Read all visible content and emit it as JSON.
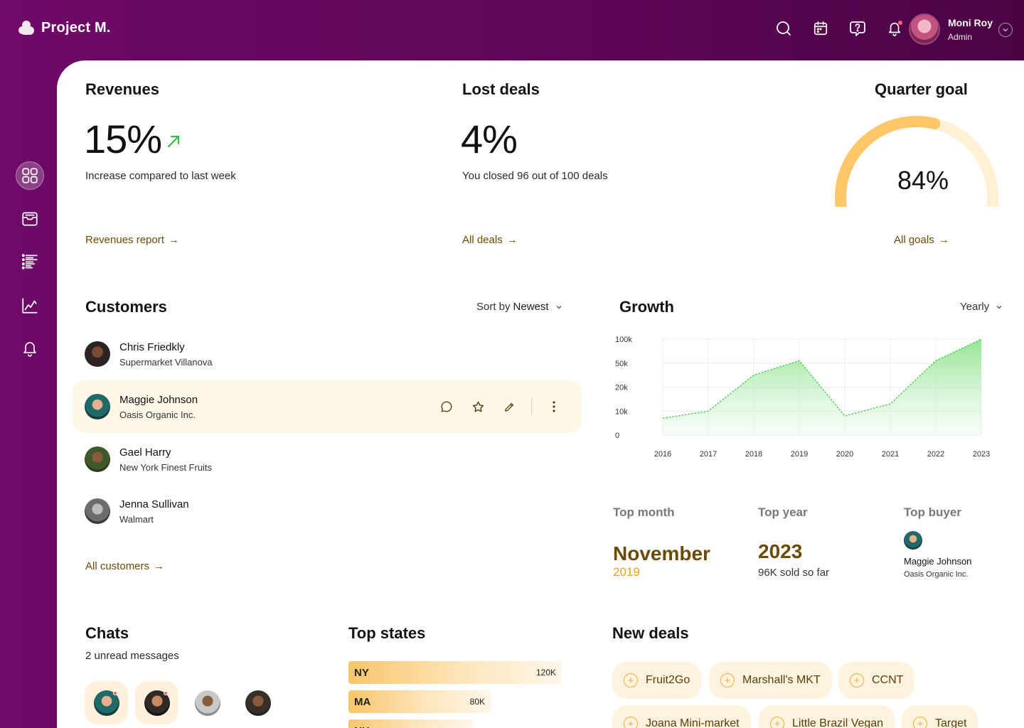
{
  "app": {
    "title": "Project M."
  },
  "user": {
    "name": "Moni Roy",
    "role": "Admin"
  },
  "topbar_icons": [
    "search-icon",
    "calendar-icon",
    "help-icon",
    "bell-icon"
  ],
  "sidebar": {
    "items": [
      "dashboard-icon",
      "inbox-icon",
      "list-icon",
      "chart-icon",
      "bell-icon"
    ]
  },
  "revenues": {
    "title": "Revenues",
    "value": "15%",
    "desc": "Increase compared to last week",
    "link": "Revenues report"
  },
  "lost_deals": {
    "title": "Lost deals",
    "value": "4%",
    "desc": "You closed 96 out of 100 deals",
    "link": "All deals"
  },
  "quarter_goal": {
    "title": "Quarter goal",
    "value": "84%",
    "progress": 0.84,
    "link": "All goals"
  },
  "customers": {
    "title": "Customers",
    "sort_label": "Sort by",
    "sort_value": "Newest",
    "items": [
      {
        "name": "Chris Friedkly",
        "company": "Supermarket Villanova"
      },
      {
        "name": "Maggie Johnson",
        "company": "Oasis Organic Inc."
      },
      {
        "name": "Gael Harry",
        "company": "New York Finest Fruits"
      },
      {
        "name": "Jenna Sullivan",
        "company": "Walmart"
      }
    ],
    "link": "All customers"
  },
  "growth": {
    "title": "Growth",
    "period": "Yearly",
    "top_month_label": "Top month",
    "top_month": "November",
    "top_month_year": "2019",
    "top_year_label": "Top year",
    "top_year": "2023",
    "top_year_desc": "96K sold so far",
    "top_buyer_label": "Top buyer",
    "top_buyer_name": "Maggie Johnson",
    "top_buyer_company": "Oasis Organic Inc."
  },
  "chart_data": {
    "type": "area",
    "x": [
      "2016",
      "2017",
      "2018",
      "2019",
      "2020",
      "2021",
      "2022",
      "2023"
    ],
    "y_ticks": [
      "100k",
      "50k",
      "20k",
      "10k",
      "0"
    ],
    "y_tick_level": [
      4,
      3,
      2,
      1,
      0
    ],
    "series": [
      {
        "values": [
          0.7,
          1.0,
          2.5,
          3.1,
          0.8,
          1.3,
          3.1,
          4.0
        ]
      }
    ],
    "y_scale": "non-linear (tick levels 0, 10k, 20k, 50k, 100k)",
    "grid": true,
    "color": "#3fcb4a"
  },
  "chats": {
    "title": "Chats",
    "desc": "2 unread messages",
    "avatars": [
      {
        "unread": true
      },
      {
        "unread": true
      },
      {
        "unread": false
      },
      {
        "unread": false
      }
    ]
  },
  "top_states": {
    "title": "Top states",
    "items": [
      {
        "code": "NY",
        "value": "120K",
        "amount": 120
      },
      {
        "code": "MA",
        "value": "80K",
        "amount": 80
      },
      {
        "code": "NH",
        "value": "",
        "amount": 70
      }
    ]
  },
  "new_deals": {
    "title": "New deals",
    "items": [
      "Fruit2Go",
      "Marshall's MKT",
      "CCNT",
      "Joana Mini-market",
      "Little Brazil Vegan",
      "Target"
    ]
  }
}
